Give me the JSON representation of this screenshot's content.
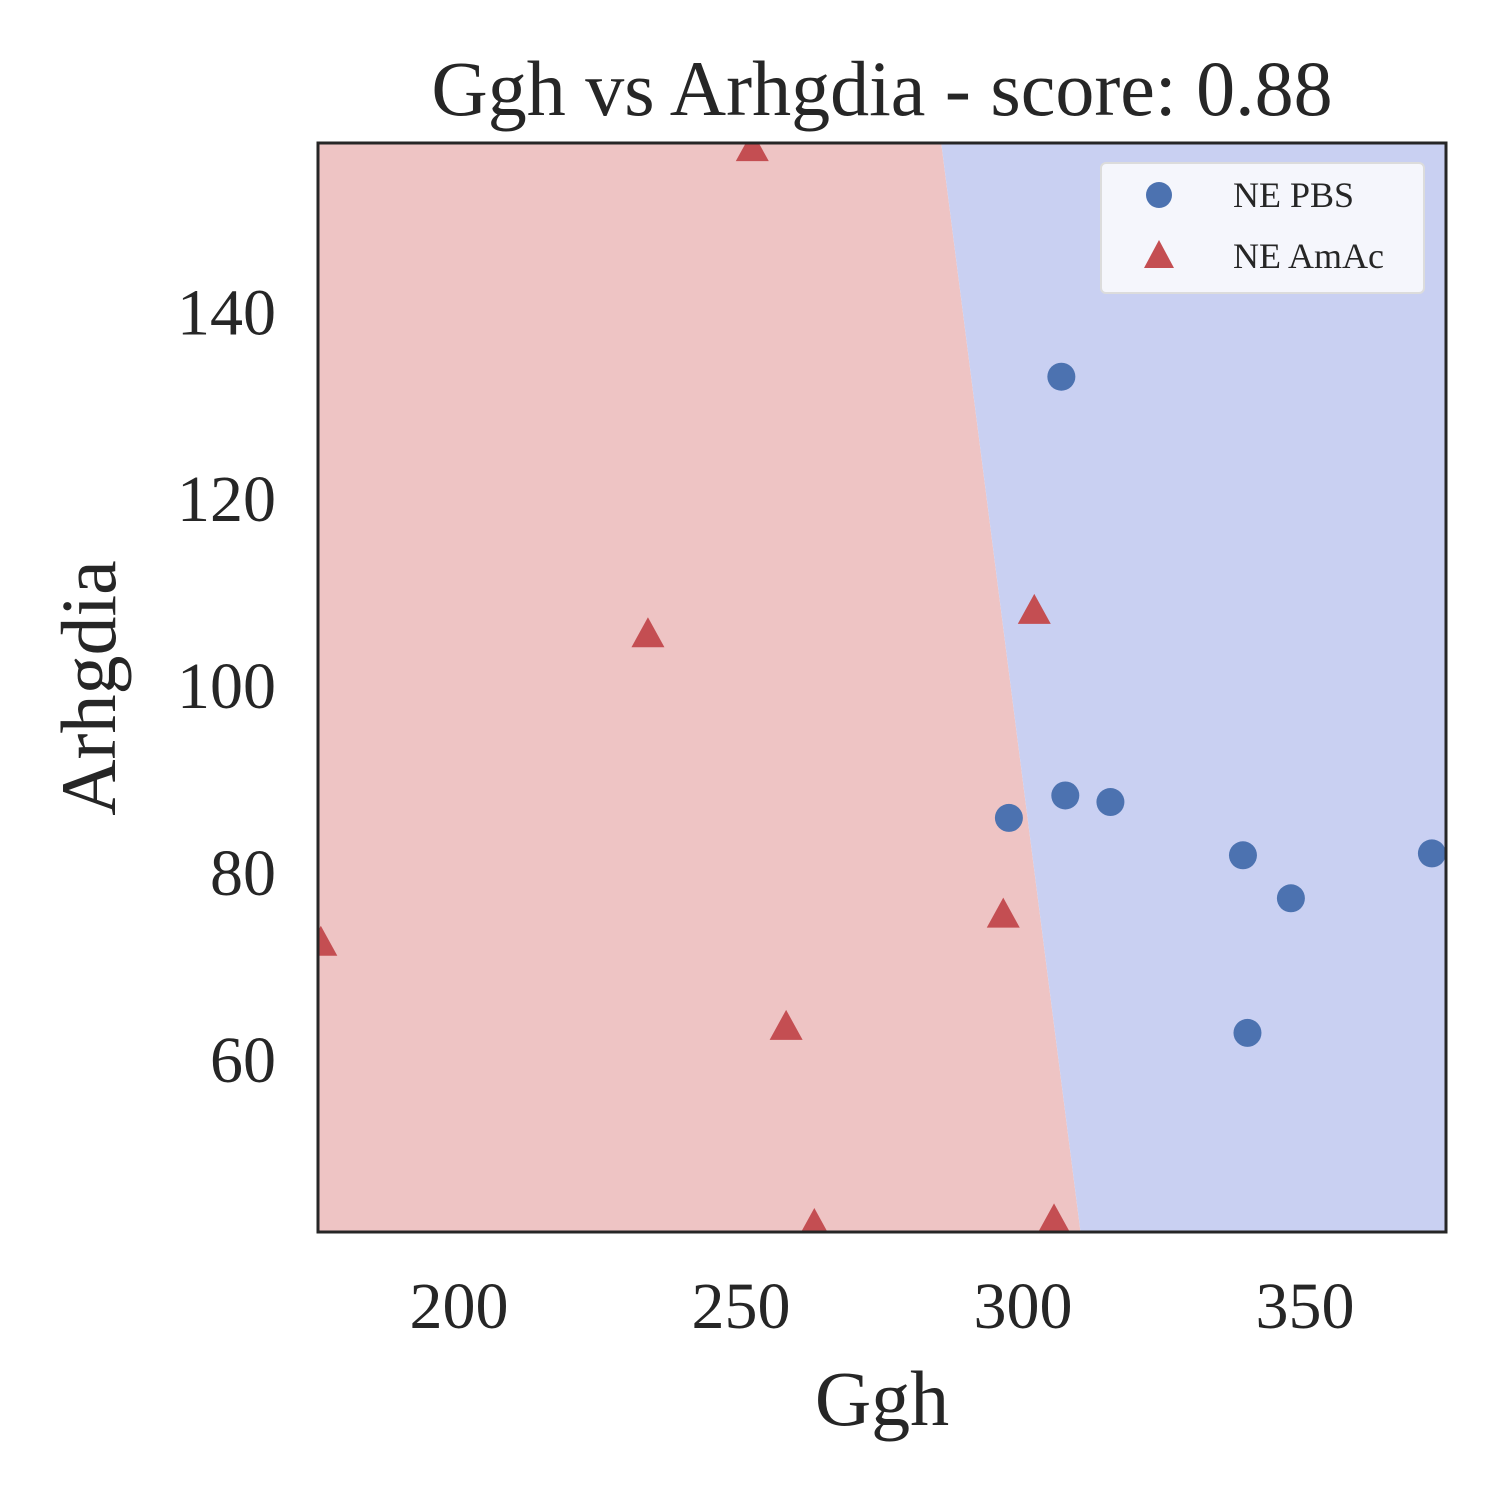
{
  "chart_data": {
    "type": "scatter",
    "title": "Ggh vs Arhgdia - score: 0.88",
    "xlabel": "Ggh",
    "ylabel": "Arhgdia",
    "xlim": [
      175,
      375
    ],
    "ylim": [
      41.5,
      158
    ],
    "xticks": [
      200,
      250,
      300,
      350
    ],
    "yticks": [
      60,
      80,
      100,
      120,
      140
    ],
    "grid": false,
    "legend_position": "top-right",
    "regions": {
      "colors": {
        "NE AmAc": "#eec4c4",
        "NE PBS": "#c9d0f2"
      },
      "boundary": [
        [
          285.5,
          158
        ],
        [
          310.2,
          41.5
        ]
      ]
    },
    "series": [
      {
        "name": "NE PBS",
        "marker": "circle",
        "color": "#4c72b0",
        "points": [
          [
            306.8,
            133.0
          ],
          [
            297.5,
            85.8
          ],
          [
            307.5,
            88.2
          ],
          [
            315.5,
            87.5
          ],
          [
            339.0,
            81.8
          ],
          [
            347.5,
            77.2
          ],
          [
            339.8,
            62.8
          ],
          [
            372.5,
            82.0
          ]
        ]
      },
      {
        "name": "NE AmAc",
        "marker": "triangle",
        "color": "#c44e52",
        "points": [
          [
            252.0,
            157.5
          ],
          [
            233.5,
            105.5
          ],
          [
            302.0,
            108.0
          ],
          [
            296.5,
            75.5
          ],
          [
            175.5,
            72.5
          ],
          [
            258.0,
            63.5
          ],
          [
            263.0,
            42.3
          ],
          [
            305.5,
            42.8
          ]
        ]
      }
    ]
  }
}
